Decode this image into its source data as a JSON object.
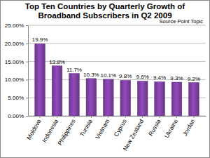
{
  "chart_data": {
    "type": "bar",
    "title": "Top Ten Countries by Quarterly Growth of Broadband Subscribers in Q2 2009",
    "subtitle": "Source Point Topic",
    "categories": [
      "Moldova",
      "Indonesia",
      "Philippines",
      "Tunisia",
      "Vietnam",
      "Cyprus",
      "New Zealand",
      "Russia",
      "Ukraine",
      "Jordan"
    ],
    "values": [
      19.9,
      13.8,
      11.7,
      10.3,
      10.1,
      9.8,
      9.6,
      9.4,
      9.3,
      9.2
    ],
    "value_labels": [
      "19.9%",
      "13.8%",
      "11.7%",
      "10.3%",
      "10.1%",
      "9.8%",
      "9.6%",
      "9.4%",
      "9.3%",
      "9.2%"
    ],
    "data_labels": true,
    "color": "#7b3f9e",
    "ylim": [
      0,
      25
    ],
    "yticks": [
      {
        "value": 0,
        "label": "0.00%"
      },
      {
        "value": 5,
        "label": "5.00%"
      },
      {
        "value": 10,
        "label": "10.00%"
      },
      {
        "value": 15,
        "label": "15.00%"
      },
      {
        "value": 20,
        "label": "20.00%"
      },
      {
        "value": 25,
        "label": "25.00%"
      }
    ],
    "grid": true
  }
}
